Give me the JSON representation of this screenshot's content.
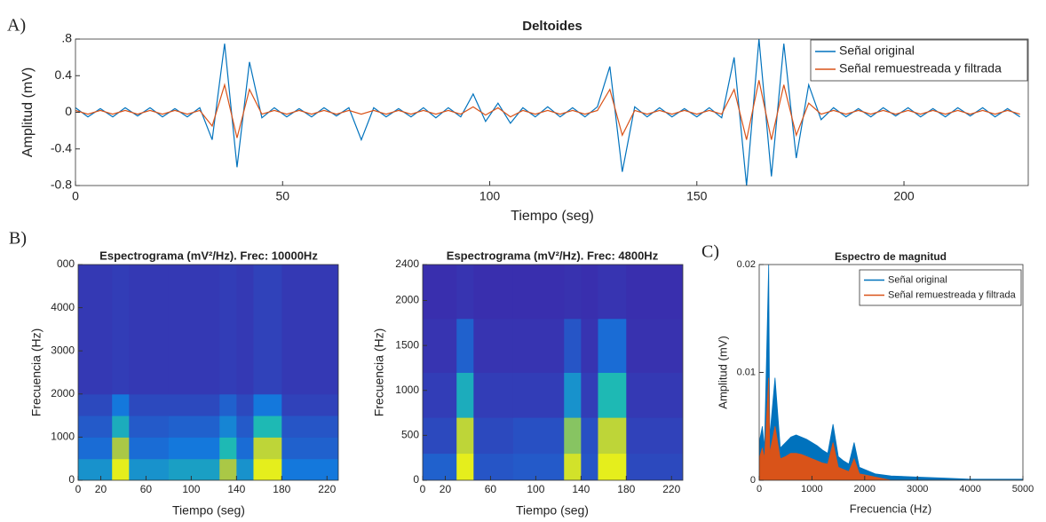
{
  "chart_data": [
    {
      "type": "line",
      "panel_label": "A)",
      "title": "Deltoides",
      "x_label": "Tiempo (seg)",
      "y_label": "Amplitud (mV)",
      "xlim": [
        0,
        230
      ],
      "xticks": [
        0,
        50,
        100,
        150,
        200
      ],
      "ylim": [
        -0.8,
        0.8
      ],
      "yticks": [
        -0.8,
        -0.4,
        0,
        0.4,
        {
          "value": 0.8,
          "label": ".8"
        }
      ],
      "x": [
        0,
        3,
        6,
        9,
        12,
        15,
        18,
        21,
        24,
        27,
        30,
        33,
        36,
        39,
        42,
        45,
        48,
        51,
        54,
        57,
        60,
        63,
        66,
        69,
        72,
        75,
        78,
        81,
        84,
        87,
        90,
        93,
        96,
        99,
        102,
        105,
        108,
        111,
        114,
        117,
        120,
        123,
        126,
        129,
        132,
        135,
        138,
        141,
        144,
        147,
        150,
        153,
        156,
        159,
        162,
        165,
        168,
        171,
        174,
        177,
        180,
        183,
        186,
        189,
        192,
        195,
        198,
        201,
        204,
        207,
        210,
        213,
        216,
        219,
        222,
        225,
        228
      ],
      "series": [
        {
          "name": "Señal original",
          "color": "#0072bd",
          "values": [
            0.05,
            -0.05,
            0.04,
            -0.05,
            0.05,
            -0.04,
            0.05,
            -0.05,
            0.04,
            -0.05,
            0.05,
            -0.3,
            0.75,
            -0.6,
            0.55,
            -0.06,
            0.05,
            -0.05,
            0.04,
            -0.05,
            0.05,
            -0.04,
            0.05,
            -0.3,
            0.05,
            -0.05,
            0.04,
            -0.05,
            0.05,
            -0.06,
            0.05,
            -0.05,
            0.2,
            -0.1,
            0.1,
            -0.12,
            0.05,
            -0.05,
            0.06,
            -0.05,
            0.05,
            -0.05,
            0.06,
            0.5,
            -0.65,
            0.06,
            -0.05,
            0.05,
            -0.05,
            0.04,
            -0.05,
            0.05,
            -0.06,
            0.6,
            -0.8,
            0.8,
            -0.7,
            0.75,
            -0.5,
            0.3,
            -0.08,
            0.05,
            -0.05,
            0.04,
            -0.05,
            0.05,
            -0.04,
            0.05,
            -0.05,
            0.04,
            -0.05,
            0.05,
            -0.04,
            0.05,
            -0.05,
            0.04,
            -0.05
          ]
        },
        {
          "name": "Señal remuestreada y filtrada",
          "color": "#d95319",
          "values": [
            0.02,
            -0.02,
            0.02,
            -0.02,
            0.02,
            -0.02,
            0.02,
            -0.02,
            0.02,
            -0.02,
            0.02,
            -0.15,
            0.3,
            -0.28,
            0.25,
            -0.02,
            0.02,
            -0.02,
            0.02,
            -0.02,
            0.02,
            -0.02,
            0.02,
            -0.02,
            0.02,
            -0.02,
            0.02,
            -0.02,
            0.02,
            -0.02,
            0.02,
            -0.02,
            0.06,
            -0.03,
            0.05,
            -0.05,
            0.02,
            -0.02,
            0.02,
            -0.02,
            0.02,
            -0.02,
            0.02,
            0.25,
            -0.25,
            0.02,
            -0.02,
            0.02,
            -0.02,
            0.02,
            -0.02,
            0.02,
            -0.02,
            0.25,
            -0.3,
            0.35,
            -0.3,
            0.3,
            -0.25,
            0.1,
            -0.02,
            0.02,
            -0.02,
            0.02,
            -0.02,
            0.02,
            -0.02,
            0.02,
            -0.02,
            0.02,
            -0.02,
            0.02,
            -0.02,
            0.02,
            -0.02,
            0.02,
            -0.02
          ]
        }
      ]
    },
    {
      "type": "heatmap",
      "panel_label": "B)",
      "title": "Espectrograma (mV²/Hz). Frec: 10000Hz",
      "x_label": "Tiempo (seg)",
      "y_label": "Frecuencia (Hz)",
      "xlim": [
        0,
        230
      ],
      "xticks": [
        0,
        20,
        60,
        100,
        140,
        180,
        220
      ],
      "ylim": [
        0,
        5000
      ],
      "yticks": [
        0,
        1000,
        2000,
        3000,
        4000,
        {
          "value": 5000,
          "label": "000"
        }
      ],
      "xbins": [
        0,
        30,
        45,
        80,
        125,
        140,
        155,
        180,
        230
      ],
      "ybins": [
        0,
        500,
        1000,
        1500,
        2000,
        5000
      ],
      "values": [
        [
          0.45,
          0.95,
          0.45,
          0.5,
          0.8,
          0.45,
          0.95,
          0.35
        ],
        [
          0.3,
          0.8,
          0.3,
          0.35,
          0.6,
          0.3,
          0.85,
          0.25
        ],
        [
          0.22,
          0.55,
          0.22,
          0.25,
          0.4,
          0.22,
          0.6,
          0.2
        ],
        [
          0.15,
          0.35,
          0.15,
          0.15,
          0.25,
          0.15,
          0.35,
          0.12
        ],
        [
          0.08,
          0.1,
          0.08,
          0.08,
          0.1,
          0.08,
          0.12,
          0.08
        ]
      ]
    },
    {
      "type": "heatmap",
      "title": "Espectrograma (mV²/Hz). Frec: 4800Hz",
      "x_label": "Tiempo (seg)",
      "y_label": "Frecuencia (Hz)",
      "xlim": [
        0,
        230
      ],
      "xticks": [
        0,
        20,
        60,
        100,
        140,
        180,
        220
      ],
      "ylim": [
        0,
        2400
      ],
      "yticks": [
        0,
        500,
        1000,
        1500,
        2000,
        2400
      ],
      "xbins": [
        0,
        30,
        45,
        80,
        125,
        140,
        155,
        180,
        230
      ],
      "ybins": [
        0,
        300,
        700,
        1200,
        1800,
        2400
      ],
      "values": [
        [
          0.25,
          0.95,
          0.2,
          0.22,
          0.9,
          0.2,
          0.95,
          0.15
        ],
        [
          0.15,
          0.85,
          0.15,
          0.18,
          0.75,
          0.18,
          0.85,
          0.12
        ],
        [
          0.1,
          0.55,
          0.1,
          0.1,
          0.45,
          0.1,
          0.6,
          0.08
        ],
        [
          0.06,
          0.25,
          0.06,
          0.06,
          0.2,
          0.06,
          0.3,
          0.05
        ],
        [
          0.04,
          0.06,
          0.04,
          0.04,
          0.05,
          0.04,
          0.06,
          0.04
        ]
      ]
    },
    {
      "type": "area",
      "panel_label": "C)",
      "title": "Espectro de magnitud",
      "x_label": "Frecuencia (Hz)",
      "y_label": "Amplitud (mV)",
      "xlim": [
        0,
        5000
      ],
      "xticks": [
        0,
        1000,
        2000,
        3000,
        4000,
        5000
      ],
      "ylim": [
        0,
        0.02
      ],
      "yticks": [
        0,
        0.01,
        0.02
      ],
      "x": [
        0,
        60,
        100,
        180,
        200,
        300,
        400,
        500,
        600,
        700,
        800,
        900,
        1000,
        1100,
        1200,
        1300,
        1400,
        1500,
        1600,
        1700,
        1800,
        1900,
        2000,
        2200,
        2500,
        3000,
        3500,
        4000,
        4500,
        5000
      ],
      "series": [
        {
          "name": "Señal original",
          "color": "#0072bd",
          "values": [
            0.0035,
            0.005,
            0.003,
            0.02,
            0.004,
            0.0095,
            0.003,
            0.0035,
            0.004,
            0.0042,
            0.004,
            0.0038,
            0.0035,
            0.0032,
            0.0028,
            0.0025,
            0.0052,
            0.0022,
            0.0018,
            0.0015,
            0.0035,
            0.0012,
            0.001,
            0.0006,
            0.0004,
            0.0003,
            0.0002,
            0.0001,
            0.0001,
            0.0001
          ]
        },
        {
          "name": "Señal remuestreada y filtrada",
          "color": "#d95319",
          "values": [
            0.002,
            0.003,
            0.002,
            0.0095,
            0.0025,
            0.005,
            0.002,
            0.0022,
            0.0025,
            0.0025,
            0.0024,
            0.0022,
            0.002,
            0.0018,
            0.0016,
            0.0015,
            0.0035,
            0.0012,
            0.001,
            0.0008,
            0.002,
            0.0006,
            0.0005,
            0.0003,
            0,
            0,
            0,
            0,
            0,
            0
          ]
        }
      ]
    }
  ]
}
